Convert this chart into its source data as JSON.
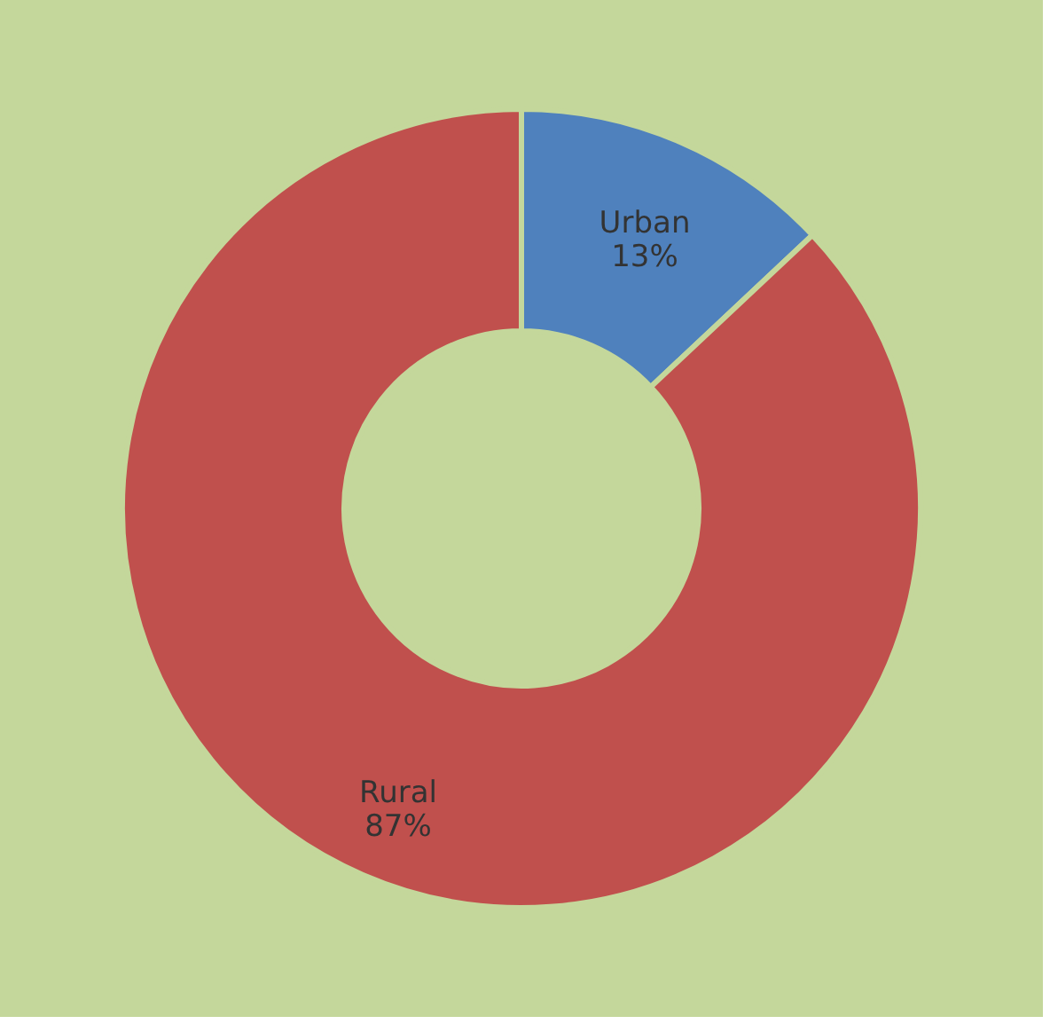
{
  "chart_data": {
    "type": "donut",
    "categories": [
      "Urban",
      "Rural"
    ],
    "values": [
      13,
      87
    ],
    "colors": [
      "#4f81bd",
      "#c0504d"
    ],
    "value_labels": [
      "13%",
      "87%"
    ],
    "legend": false
  }
}
